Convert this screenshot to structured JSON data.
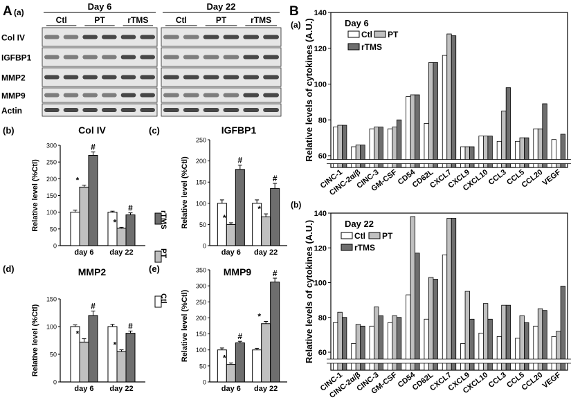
{
  "labels": {
    "panel_A": "A",
    "panel_B": "B",
    "sub_a": "(a)",
    "sub_b": "(b)",
    "sub_c": "(c)",
    "sub_d": "(d)",
    "sub_e": "(e)",
    "sub_Ba": "(a)",
    "sub_Bb": "(b)"
  },
  "blot": {
    "time_points": [
      "Day 6",
      "Day 22"
    ],
    "groups": [
      "Ctl",
      "PT",
      "rTMS"
    ],
    "rows": [
      "Col IV",
      "IGFBP1",
      "MMP2",
      "MMP9",
      "Actin"
    ]
  },
  "bar_legend": {
    "entries": [
      "Ctl",
      "PT",
      "rTMS"
    ]
  },
  "colors": {
    "ctl": "#ffffff",
    "pt": "#c0c0c0",
    "rtms": "#6e6e6e"
  },
  "chart_data": [
    {
      "type": "bar",
      "title": "Col IV",
      "ylabel": "Relative level (%Ctl)",
      "categories": [
        "day 6",
        "day 22"
      ],
      "ylim": [
        0,
        300
      ],
      "yticks": [
        "0",
        "50",
        "100",
        "150",
        "200",
        "250",
        "300"
      ],
      "series": [
        {
          "name": "Ctl",
          "values": [
            100,
            100
          ],
          "errors": [
            6,
            3
          ]
        },
        {
          "name": "PT",
          "values": [
            175,
            52
          ],
          "errors": [
            6,
            3
          ]
        },
        {
          "name": "rTMS",
          "values": [
            270,
            92
          ],
          "errors": [
            10,
            6
          ]
        }
      ],
      "annotations": [
        [
          "",
          "*",
          "#"
        ],
        [
          "",
          "*",
          "#"
        ]
      ]
    },
    {
      "type": "bar",
      "title": "IGFBP1",
      "ylabel": "Relative level (%Ctl)",
      "categories": [
        "day 6",
        "day 22"
      ],
      "ylim": [
        0,
        250
      ],
      "yticks": [
        "0",
        "50",
        "100",
        "150",
        "200",
        "250"
      ],
      "series": [
        {
          "name": "Ctl",
          "values": [
            100,
            100
          ],
          "errors": [
            8,
            8
          ]
        },
        {
          "name": "PT",
          "values": [
            50,
            68
          ],
          "errors": [
            4,
            7
          ]
        },
        {
          "name": "rTMS",
          "values": [
            180,
            135
          ],
          "errors": [
            10,
            12
          ]
        }
      ],
      "annotations": [
        [
          "",
          "*",
          "#"
        ],
        [
          "",
          "*",
          "#"
        ]
      ]
    },
    {
      "type": "bar",
      "title": "MMP2",
      "ylabel": "Relative level (%Ctl)",
      "categories": [
        "day 6",
        "day 22"
      ],
      "ylim": [
        0,
        150
      ],
      "yticks": [
        "0",
        "50",
        "100",
        "150"
      ],
      "series": [
        {
          "name": "Ctl",
          "values": [
            100,
            100
          ],
          "errors": [
            3,
            4
          ]
        },
        {
          "name": "PT",
          "values": [
            72,
            55
          ],
          "errors": [
            6,
            3
          ]
        },
        {
          "name": "rTMS",
          "values": [
            120,
            88
          ],
          "errors": [
            8,
            4
          ]
        }
      ],
      "annotations": [
        [
          "",
          "*",
          "#"
        ],
        [
          "",
          "*",
          "#"
        ]
      ]
    },
    {
      "type": "bar",
      "title": "MMP9",
      "ylabel": "Relative level (%Ctl)",
      "categories": [
        "day 6",
        "day 22"
      ],
      "ylim": [
        0,
        350
      ],
      "yticks": [
        "0",
        "50",
        "100",
        "150",
        "200",
        "250",
        "300",
        "350"
      ],
      "series": [
        {
          "name": "Ctl",
          "values": [
            100,
            100
          ],
          "errors": [
            6,
            5
          ]
        },
        {
          "name": "PT",
          "values": [
            55,
            182
          ],
          "errors": [
            4,
            7
          ]
        },
        {
          "name": "rTMS",
          "values": [
            122,
            312
          ],
          "errors": [
            5,
            12
          ]
        }
      ],
      "annotations": [
        [
          "",
          "*",
          "#"
        ],
        [
          "",
          "*",
          "#"
        ]
      ]
    },
    {
      "type": "bar",
      "title": "Day 6",
      "ylabel": "Relative levels of cytokines (A.U.)",
      "categories": [
        "CINC-1",
        "CINC-2α/β",
        "CINC-3",
        "GM-CSF",
        "CD54",
        "CD62L",
        "CXCL7",
        "CXCL9",
        "CXCL10",
        "CCL3",
        "CCL5",
        "CCL20",
        "VEGF"
      ],
      "ylim": [
        60,
        140
      ],
      "yticks": [
        "60",
        "80",
        "100",
        "120",
        "140"
      ],
      "axis_break": true,
      "series": [
        {
          "name": "Ctl",
          "values": [
            76,
            65,
            75,
            75,
            93,
            78,
            116,
            65,
            71,
            68,
            68,
            75,
            69
          ]
        },
        {
          "name": "PT",
          "values": [
            77,
            66,
            76,
            76,
            94,
            112,
            128,
            65,
            71,
            85,
            70,
            75,
            57
          ]
        },
        {
          "name": "rTMS",
          "values": [
            77,
            66,
            76,
            80,
            94,
            112,
            127,
            65,
            71,
            98,
            70,
            89,
            72
          ]
        }
      ]
    },
    {
      "type": "bar",
      "title": "Day 22",
      "ylabel": "Relative levels of cytokines (A.U.)",
      "categories": [
        "CINC-1",
        "CINC-2α/β",
        "CINC-3",
        "GM-CSF",
        "CD54",
        "CD62L",
        "CXCL7",
        "CXCL9",
        "CXCL10",
        "CCL3",
        "CCL5",
        "CCL20",
        "VEGF"
      ],
      "ylim": [
        60,
        140
      ],
      "yticks": [
        "60",
        "80",
        "100",
        "120",
        "140"
      ],
      "axis_break": true,
      "series": [
        {
          "name": "Ctl",
          "values": [
            77,
            65,
            75,
            77,
            93,
            79,
            116,
            65,
            71,
            69,
            68,
            75,
            69
          ]
        },
        {
          "name": "PT",
          "values": [
            83,
            76,
            86,
            81,
            138,
            103,
            137,
            95,
            88,
            87,
            81,
            85,
            72
          ]
        },
        {
          "name": "rTMS",
          "values": [
            80,
            75,
            81,
            80,
            117,
            102,
            137,
            79,
            79,
            87,
            77,
            84,
            98
          ]
        }
      ]
    }
  ]
}
